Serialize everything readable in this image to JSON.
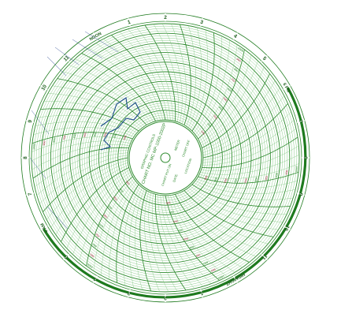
{
  "hour_labels": [
    "NOON",
    "1",
    "2",
    "3",
    "4",
    "5",
    "6 PM",
    "7",
    "8",
    "9",
    "10",
    "11",
    "MIDNIGHT",
    "1",
    "2",
    "3",
    "4",
    "5",
    "6 AM",
    "7",
    "8",
    "9",
    "10",
    "11"
  ],
  "ring_values": [
    "100",
    "200",
    "300",
    "400",
    "500",
    "600",
    "700",
    "800",
    "900",
    "1000"
  ],
  "center": {
    "lines": [
      "CHART NO. MC MP-1000-2002P",
      "GRAPHIC CONTROLS",
      "CHART PUT ON",
      "METER",
      "DATE",
      "CHART OFF",
      "LOCATION"
    ]
  },
  "colors": {
    "grid": "#2e8b2e",
    "grid_light": "#7fc77f",
    "border": "#1e7a1e",
    "trace": "#1a4a8a",
    "pen_red": "#b0304a",
    "ink": "#23408e"
  }
}
